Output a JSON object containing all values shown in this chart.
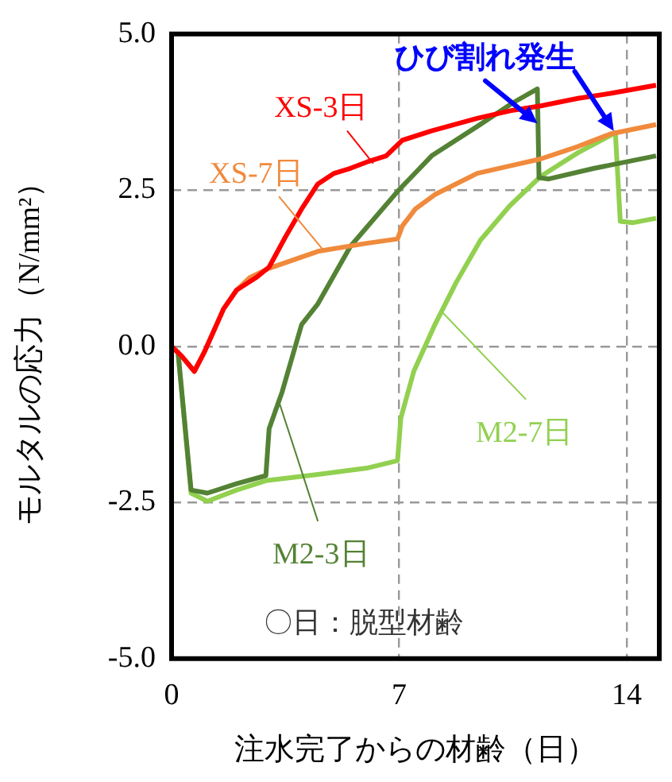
{
  "chart_data": {
    "type": "line",
    "xlabel": "注水完了からの材齢（日）",
    "ylabel": "モルタルの応力（N/mm²）",
    "xlim": [
      0,
      15
    ],
    "xticks": [
      0,
      7,
      14
    ],
    "ylim": [
      -5,
      5
    ],
    "yticks": [
      {
        "value": 5,
        "label": "5.0"
      },
      {
        "value": 2.5,
        "label": "2.5"
      },
      {
        "value": 0,
        "label": "0.0"
      },
      {
        "value": -2.5,
        "label": "-2.5"
      },
      {
        "value": -5,
        "label": "-5.0"
      }
    ],
    "grid": true,
    "legend": false,
    "line_style": "solid",
    "marker": "none",
    "annotations": [
      {
        "text": "ひび割れ発生",
        "x": 11.25,
        "y": 4.12
      },
      "〇日：脱型材齢"
    ],
    "series": [
      {
        "name": "XS-3日",
        "color": "#ff0000",
        "x": [
          0,
          0.3,
          0.7,
          1.0,
          1.6,
          2.0,
          2.6,
          3.0,
          3.5,
          4.0,
          4.5,
          5.0,
          5.5,
          6.0,
          6.6,
          6.9,
          7.1,
          8.0,
          9.4,
          10.5,
          11.35,
          12.5,
          13.5,
          14.9
        ],
        "values": [
          0,
          -0.15,
          -0.4,
          -0.1,
          0.6,
          0.9,
          1.1,
          1.27,
          1.75,
          2.2,
          2.6,
          2.77,
          2.85,
          2.95,
          3.05,
          3.2,
          3.3,
          3.45,
          3.65,
          3.78,
          3.85,
          3.97,
          4.05,
          4.18
        ]
      },
      {
        "name": "XS-7日",
        "color": "#f08a3c",
        "x": [
          0,
          0.3,
          0.7,
          1.0,
          1.6,
          2.0,
          2.4,
          3.0,
          4.5,
          6.0,
          6.95,
          7.1,
          7.5,
          8.1,
          9.4,
          10.5,
          11.35,
          12.5,
          13.5,
          14.9
        ],
        "values": [
          0,
          -0.15,
          -0.4,
          -0.1,
          0.6,
          0.9,
          1.1,
          1.25,
          1.52,
          1.65,
          1.72,
          1.93,
          2.2,
          2.43,
          2.77,
          2.9,
          3.0,
          3.2,
          3.4,
          3.55
        ]
      },
      {
        "name": "M2-3日",
        "color": "#548235",
        "x": [
          0,
          0.2,
          0.6,
          1.1,
          2.0,
          2.9,
          3.0,
          3.4,
          4.0,
          4.5,
          5.5,
          6.95,
          8.0,
          9.4,
          10.5,
          11.25,
          11.3,
          11.6,
          13.0,
          14.9
        ],
        "values": [
          0,
          -0.1,
          -2.3,
          -2.35,
          -2.2,
          -2.07,
          -1.32,
          -0.73,
          0.35,
          0.68,
          1.6,
          2.48,
          3.05,
          3.52,
          3.9,
          4.12,
          2.7,
          2.68,
          2.85,
          3.05
        ]
      },
      {
        "name": "M2-7日",
        "color": "#92d050",
        "x": [
          0,
          0.2,
          0.6,
          1.1,
          2.0,
          2.9,
          4.5,
          6.0,
          6.95,
          7.05,
          7.45,
          8.1,
          8.75,
          9.5,
          10.4,
          11.35,
          12.5,
          13.65,
          13.8,
          14.2,
          14.9
        ],
        "values": [
          0,
          -0.1,
          -2.35,
          -2.48,
          -2.3,
          -2.15,
          -2.05,
          -1.95,
          -1.83,
          -1.15,
          -0.4,
          0.35,
          1.02,
          1.7,
          2.25,
          2.72,
          3.1,
          3.42,
          2.0,
          1.98,
          2.05
        ]
      }
    ]
  }
}
